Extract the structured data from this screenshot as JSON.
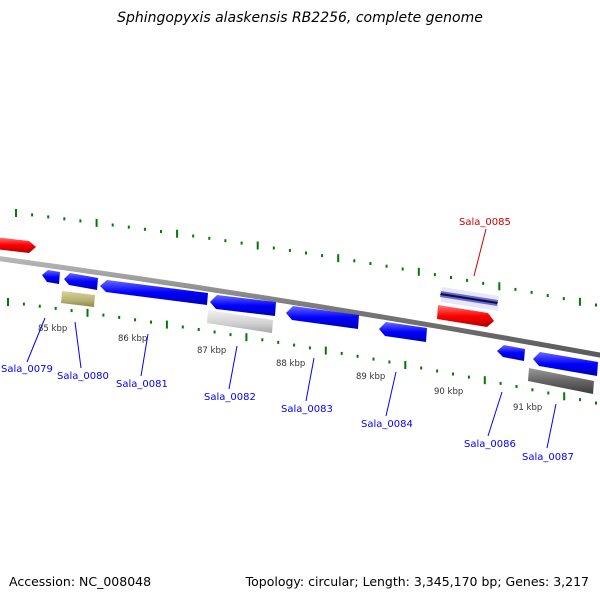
{
  "title": "Sphingopyxis alaskensis RB2256, complete genome",
  "footer": {
    "accession": "Accession: NC_008048",
    "summary": "Topology: circular; Length: 3,345,170 bp; Genes: 3,217"
  },
  "colors": {
    "forward_gene": "#0000ff",
    "highlight_gene": "#ff0000",
    "tick": "#007a00",
    "backbone": "#808080"
  },
  "scale_labels": [
    "85 kbp",
    "86 kbp",
    "87 kbp",
    "88 kbp",
    "89 kbp",
    "90 kbp",
    "91 kbp"
  ],
  "genes": [
    {
      "label": "Sala_0079",
      "color": "#0000ff"
    },
    {
      "label": "Sala_0080",
      "color": "#0000ff"
    },
    {
      "label": "Sala_0081",
      "color": "#0000ff"
    },
    {
      "label": "Sala_0082",
      "color": "#0000ff"
    },
    {
      "label": "Sala_0083",
      "color": "#0000ff"
    },
    {
      "label": "Sala_0084",
      "color": "#0000ff"
    },
    {
      "label": "Sala_0085",
      "color": "#cc0000"
    },
    {
      "label": "Sala_0086",
      "color": "#0000ff"
    },
    {
      "label": "Sala_0087",
      "color": "#0000ff"
    }
  ]
}
